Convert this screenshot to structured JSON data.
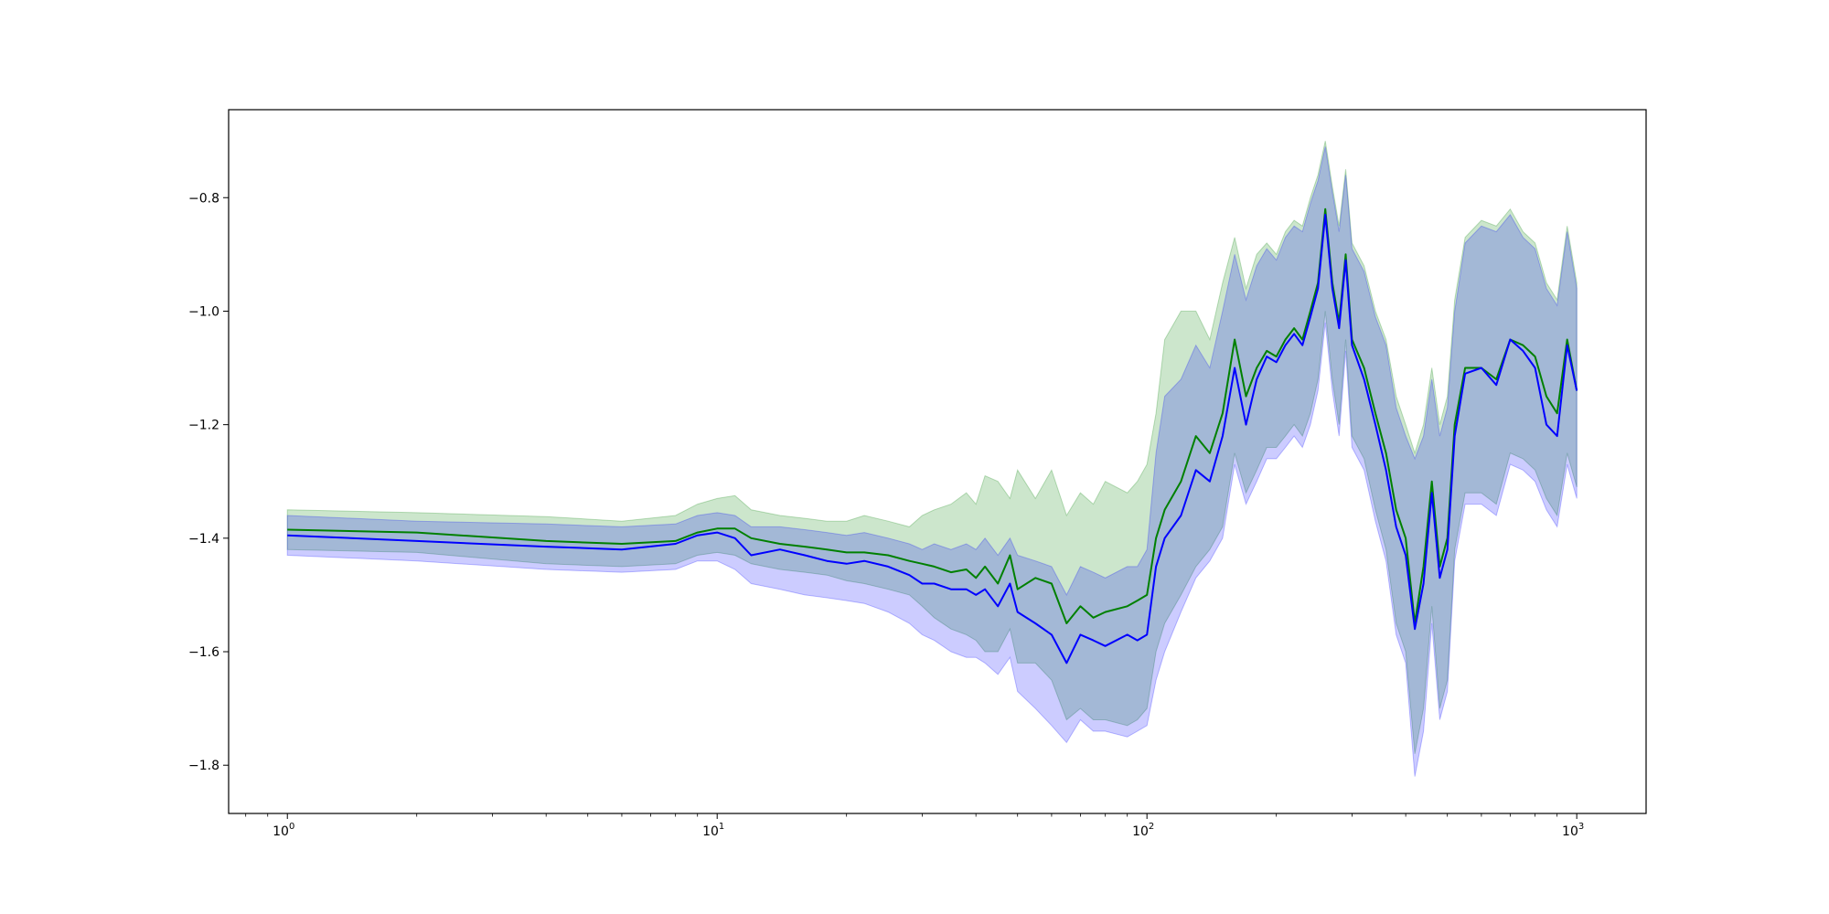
{
  "chart_data": {
    "type": "line",
    "title": "",
    "xlabel": "",
    "ylabel": "",
    "x_scale": "log",
    "xlim": [
      0.73,
      1450
    ],
    "ylim": [
      -1.885,
      -0.645
    ],
    "grid": false,
    "legend": "none",
    "x_ticks": [
      {
        "value": 1,
        "base": "10",
        "exp": "0"
      },
      {
        "value": 10,
        "base": "10",
        "exp": "1"
      },
      {
        "value": 100,
        "base": "10",
        "exp": "2"
      },
      {
        "value": 1000,
        "base": "10",
        "exp": "3"
      }
    ],
    "y_ticks": [
      {
        "value": -0.8,
        "label": "−0.8"
      },
      {
        "value": -1.0,
        "label": "−1.0"
      },
      {
        "value": -1.2,
        "label": "−1.2"
      },
      {
        "value": -1.4,
        "label": "−1.4"
      },
      {
        "value": -1.6,
        "label": "−1.6"
      },
      {
        "value": -1.8,
        "label": "−1.8"
      }
    ],
    "x": [
      1,
      2,
      4,
      6,
      8,
      9,
      10,
      11,
      12,
      14,
      16,
      18,
      20,
      22,
      25,
      28,
      30,
      32,
      35,
      38,
      40,
      42,
      45,
      48,
      50,
      55,
      60,
      65,
      70,
      75,
      80,
      90,
      95,
      100,
      105,
      110,
      120,
      130,
      140,
      150,
      160,
      170,
      180,
      190,
      200,
      210,
      220,
      230,
      240,
      250,
      260,
      270,
      280,
      290,
      300,
      320,
      340,
      360,
      380,
      400,
      420,
      440,
      460,
      480,
      500,
      520,
      550,
      600,
      650,
      700,
      750,
      800,
      850,
      900,
      950,
      1000
    ],
    "series": [
      {
        "color": "#008000",
        "band_color": "#008000",
        "values": [
          -1.385,
          -1.39,
          -1.405,
          -1.41,
          -1.405,
          -1.39,
          -1.383,
          -1.383,
          -1.4,
          -1.41,
          -1.415,
          -1.42,
          -1.425,
          -1.425,
          -1.43,
          -1.44,
          -1.445,
          -1.45,
          -1.46,
          -1.455,
          -1.47,
          -1.45,
          -1.48,
          -1.43,
          -1.49,
          -1.47,
          -1.48,
          -1.55,
          -1.52,
          -1.54,
          -1.53,
          -1.52,
          -1.51,
          -1.5,
          -1.4,
          -1.35,
          -1.3,
          -1.22,
          -1.25,
          -1.18,
          -1.05,
          -1.15,
          -1.1,
          -1.07,
          -1.08,
          -1.05,
          -1.03,
          -1.05,
          -1.0,
          -0.95,
          -0.82,
          -0.95,
          -1.02,
          -0.9,
          -1.05,
          -1.1,
          -1.18,
          -1.25,
          -1.35,
          -1.4,
          -1.55,
          -1.45,
          -1.3,
          -1.45,
          -1.4,
          -1.2,
          -1.1,
          -1.1,
          -1.12,
          -1.05,
          -1.06,
          -1.08,
          -1.15,
          -1.18,
          -1.05,
          -1.14
        ],
        "upper": [
          -1.35,
          -1.355,
          -1.362,
          -1.37,
          -1.36,
          -1.34,
          -1.33,
          -1.325,
          -1.35,
          -1.36,
          -1.365,
          -1.37,
          -1.37,
          -1.36,
          -1.37,
          -1.38,
          -1.36,
          -1.35,
          -1.34,
          -1.32,
          -1.34,
          -1.29,
          -1.3,
          -1.33,
          -1.28,
          -1.33,
          -1.28,
          -1.36,
          -1.32,
          -1.34,
          -1.3,
          -1.32,
          -1.3,
          -1.27,
          -1.18,
          -1.05,
          -1.0,
          -1.0,
          -1.05,
          -0.95,
          -0.87,
          -0.96,
          -0.9,
          -0.88,
          -0.9,
          -0.86,
          -0.84,
          -0.85,
          -0.8,
          -0.76,
          -0.7,
          -0.78,
          -0.85,
          -0.75,
          -0.88,
          -0.92,
          -1.0,
          -1.05,
          -1.15,
          -1.2,
          -1.25,
          -1.2,
          -1.1,
          -1.2,
          -1.15,
          -0.98,
          -0.87,
          -0.84,
          -0.85,
          -0.82,
          -0.86,
          -0.88,
          -0.95,
          -0.98,
          -0.85,
          -0.95
        ],
        "lower": [
          -1.42,
          -1.425,
          -1.445,
          -1.45,
          -1.445,
          -1.43,
          -1.425,
          -1.43,
          -1.445,
          -1.455,
          -1.46,
          -1.465,
          -1.475,
          -1.48,
          -1.49,
          -1.5,
          -1.52,
          -1.54,
          -1.56,
          -1.57,
          -1.58,
          -1.6,
          -1.6,
          -1.56,
          -1.62,
          -1.62,
          -1.65,
          -1.72,
          -1.7,
          -1.72,
          -1.72,
          -1.73,
          -1.72,
          -1.7,
          -1.6,
          -1.55,
          -1.5,
          -1.45,
          -1.42,
          -1.38,
          -1.25,
          -1.32,
          -1.28,
          -1.24,
          -1.24,
          -1.22,
          -1.2,
          -1.22,
          -1.18,
          -1.12,
          -1.0,
          -1.12,
          -1.2,
          -1.05,
          -1.22,
          -1.26,
          -1.35,
          -1.42,
          -1.55,
          -1.6,
          -1.78,
          -1.7,
          -1.52,
          -1.7,
          -1.65,
          -1.42,
          -1.32,
          -1.32,
          -1.34,
          -1.25,
          -1.26,
          -1.28,
          -1.33,
          -1.36,
          -1.25,
          -1.31
        ]
      },
      {
        "color": "#0000ff",
        "band_color": "#0000ff",
        "values": [
          -1.395,
          -1.405,
          -1.415,
          -1.42,
          -1.41,
          -1.395,
          -1.39,
          -1.4,
          -1.43,
          -1.42,
          -1.43,
          -1.44,
          -1.445,
          -1.44,
          -1.45,
          -1.465,
          -1.48,
          -1.48,
          -1.49,
          -1.49,
          -1.5,
          -1.49,
          -1.52,
          -1.48,
          -1.53,
          -1.55,
          -1.57,
          -1.62,
          -1.57,
          -1.58,
          -1.59,
          -1.57,
          -1.58,
          -1.57,
          -1.45,
          -1.4,
          -1.36,
          -1.28,
          -1.3,
          -1.22,
          -1.1,
          -1.2,
          -1.12,
          -1.08,
          -1.09,
          -1.06,
          -1.04,
          -1.06,
          -1.01,
          -0.96,
          -0.83,
          -0.96,
          -1.03,
          -0.91,
          -1.06,
          -1.12,
          -1.2,
          -1.28,
          -1.38,
          -1.43,
          -1.56,
          -1.48,
          -1.32,
          -1.47,
          -1.42,
          -1.22,
          -1.11,
          -1.1,
          -1.13,
          -1.05,
          -1.07,
          -1.1,
          -1.2,
          -1.22,
          -1.06,
          -1.14
        ],
        "upper": [
          -1.36,
          -1.37,
          -1.375,
          -1.38,
          -1.375,
          -1.36,
          -1.355,
          -1.36,
          -1.38,
          -1.38,
          -1.385,
          -1.39,
          -1.395,
          -1.39,
          -1.4,
          -1.41,
          -1.42,
          -1.41,
          -1.42,
          -1.41,
          -1.42,
          -1.4,
          -1.43,
          -1.4,
          -1.43,
          -1.44,
          -1.45,
          -1.5,
          -1.45,
          -1.46,
          -1.47,
          -1.45,
          -1.45,
          -1.42,
          -1.25,
          -1.15,
          -1.12,
          -1.06,
          -1.1,
          -1.0,
          -0.9,
          -0.98,
          -0.92,
          -0.89,
          -0.91,
          -0.87,
          -0.85,
          -0.86,
          -0.81,
          -0.77,
          -0.71,
          -0.79,
          -0.86,
          -0.76,
          -0.89,
          -0.93,
          -1.01,
          -1.06,
          -1.17,
          -1.22,
          -1.26,
          -1.22,
          -1.12,
          -1.22,
          -1.17,
          -1.0,
          -0.88,
          -0.85,
          -0.86,
          -0.83,
          -0.87,
          -0.89,
          -0.96,
          -0.99,
          -0.86,
          -0.96
        ],
        "lower": [
          -1.43,
          -1.44,
          -1.455,
          -1.46,
          -1.455,
          -1.44,
          -1.44,
          -1.455,
          -1.48,
          -1.49,
          -1.5,
          -1.505,
          -1.51,
          -1.515,
          -1.53,
          -1.55,
          -1.57,
          -1.58,
          -1.6,
          -1.61,
          -1.61,
          -1.62,
          -1.64,
          -1.61,
          -1.67,
          -1.7,
          -1.73,
          -1.76,
          -1.72,
          -1.74,
          -1.74,
          -1.75,
          -1.74,
          -1.73,
          -1.65,
          -1.6,
          -1.53,
          -1.47,
          -1.44,
          -1.4,
          -1.27,
          -1.34,
          -1.3,
          -1.26,
          -1.26,
          -1.24,
          -1.22,
          -1.24,
          -1.2,
          -1.14,
          -1.02,
          -1.14,
          -1.22,
          -1.07,
          -1.24,
          -1.28,
          -1.37,
          -1.44,
          -1.57,
          -1.62,
          -1.82,
          -1.74,
          -1.55,
          -1.72,
          -1.67,
          -1.44,
          -1.34,
          -1.34,
          -1.36,
          -1.27,
          -1.28,
          -1.3,
          -1.35,
          -1.38,
          -1.27,
          -1.33
        ]
      }
    ]
  }
}
